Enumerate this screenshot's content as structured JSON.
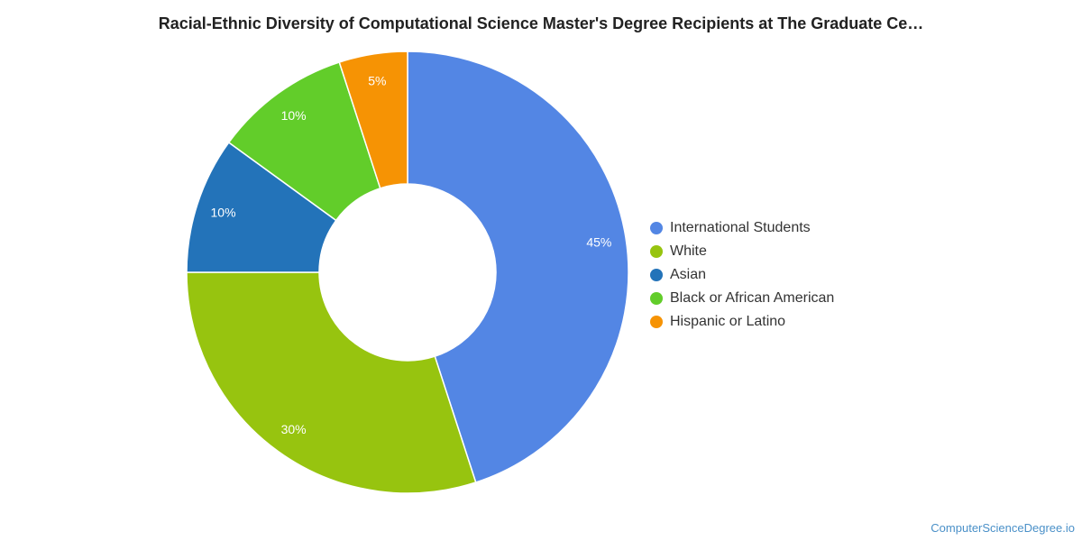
{
  "chart_data": {
    "type": "pie",
    "donut": true,
    "title": "Racial-Ethnic Diversity of Computational Science Master's Degree Recipients at The Graduate Ce…",
    "unit": "%",
    "categories": [
      "International Students",
      "White",
      "Asian",
      "Black or African American",
      "Hispanic or Latino"
    ],
    "values": [
      45,
      30,
      10,
      10,
      5
    ],
    "labels": [
      "45%",
      "30%",
      "10%",
      "10%",
      "5%"
    ],
    "colors": [
      "#5386E4",
      "#97C40F",
      "#2373B9",
      "#62CD2A",
      "#F69304"
    ],
    "legend_position": "right"
  },
  "watermark": "ComputerScienceDegree.io"
}
